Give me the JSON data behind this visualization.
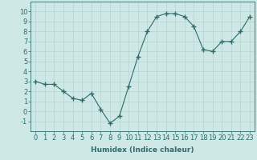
{
  "x": [
    0,
    1,
    2,
    3,
    4,
    5,
    6,
    7,
    8,
    9,
    10,
    11,
    12,
    13,
    14,
    15,
    16,
    17,
    18,
    19,
    20,
    21,
    22,
    23
  ],
  "y": [
    3,
    2.7,
    2.7,
    2.0,
    1.3,
    1.1,
    1.8,
    0.2,
    -1.2,
    -0.5,
    2.5,
    5.5,
    8.0,
    9.5,
    9.8,
    9.8,
    9.5,
    8.5,
    6.2,
    6.0,
    7.0,
    7.0,
    8.0,
    9.5
  ],
  "xlabel": "Humidex (Indice chaleur)",
  "xlim": [
    -0.5,
    23.5
  ],
  "ylim": [
    -2,
    11
  ],
  "yticks": [
    -1,
    0,
    1,
    2,
    3,
    4,
    5,
    6,
    7,
    8,
    9,
    10
  ],
  "xticks": [
    0,
    1,
    2,
    3,
    4,
    5,
    6,
    7,
    8,
    9,
    10,
    11,
    12,
    13,
    14,
    15,
    16,
    17,
    18,
    19,
    20,
    21,
    22,
    23
  ],
  "line_color": "#2e6b6b",
  "marker": "+",
  "marker_size": 4,
  "bg_color": "#cde8e5",
  "grid_color": "#b8d8d5",
  "label_fontsize": 6.5,
  "tick_fontsize": 6
}
